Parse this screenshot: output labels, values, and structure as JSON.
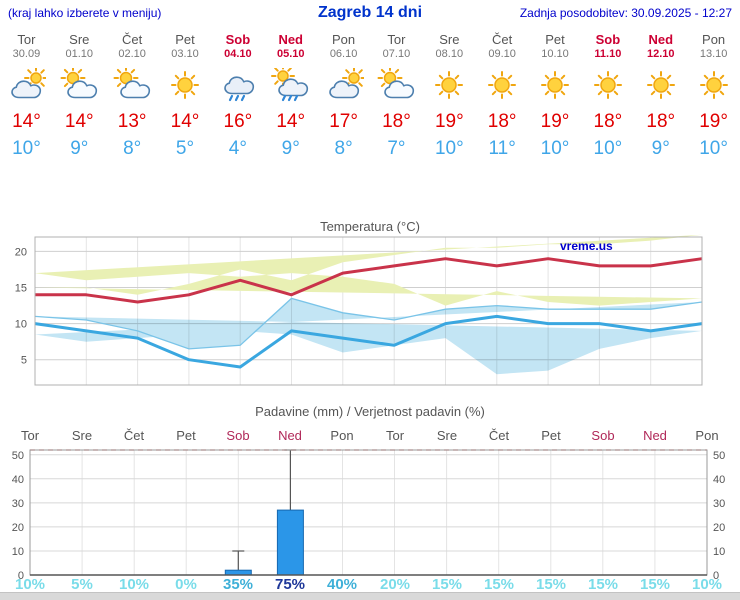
{
  "header": {
    "hint": "(kraj lahko izberete v meniju)",
    "title": "Zagreb 14 dni",
    "updated": "Zadnja posodobitev: 30.09.2025 - 12:27"
  },
  "days": [
    {
      "name": "Tor",
      "date": "30.09",
      "weekend": false,
      "icon": "cloudy",
      "tmax": "14°",
      "tmin": "10°"
    },
    {
      "name": "Sre",
      "date": "01.10",
      "weekend": false,
      "icon": "partly",
      "tmax": "14°",
      "tmin": "9°"
    },
    {
      "name": "Čet",
      "date": "02.10",
      "weekend": false,
      "icon": "partly",
      "tmax": "13°",
      "tmin": "8°"
    },
    {
      "name": "Pet",
      "date": "03.10",
      "weekend": false,
      "icon": "sun",
      "tmax": "14°",
      "tmin": "5°"
    },
    {
      "name": "Sob",
      "date": "04.10",
      "weekend": true,
      "icon": "rain",
      "tmax": "16°",
      "tmin": "4°"
    },
    {
      "name": "Ned",
      "date": "05.10",
      "weekend": true,
      "icon": "rainsun",
      "tmax": "14°",
      "tmin": "9°"
    },
    {
      "name": "Pon",
      "date": "06.10",
      "weekend": false,
      "icon": "cloudy",
      "tmax": "17°",
      "tmin": "8°"
    },
    {
      "name": "Tor",
      "date": "07.10",
      "weekend": false,
      "icon": "partly",
      "tmax": "18°",
      "tmin": "7°"
    },
    {
      "name": "Sre",
      "date": "08.10",
      "weekend": false,
      "icon": "sun",
      "tmax": "19°",
      "tmin": "10°"
    },
    {
      "name": "Čet",
      "date": "09.10",
      "weekend": false,
      "icon": "sun",
      "tmax": "18°",
      "tmin": "11°"
    },
    {
      "name": "Pet",
      "date": "10.10",
      "weekend": false,
      "icon": "sun",
      "tmax": "19°",
      "tmin": "10°"
    },
    {
      "name": "Sob",
      "date": "11.10",
      "weekend": true,
      "icon": "sun",
      "tmax": "18°",
      "tmin": "10°"
    },
    {
      "name": "Ned",
      "date": "12.10",
      "weekend": true,
      "icon": "sun",
      "tmax": "18°",
      "tmin": "9°"
    },
    {
      "name": "Pon",
      "date": "13.10",
      "weekend": false,
      "icon": "sun",
      "tmax": "19°",
      "tmin": "10°"
    }
  ],
  "chart_data": [
    {
      "type": "line",
      "title": "Temperatura (°C)",
      "watermark": "vreme.us",
      "watermark_color": "#0000cc",
      "categories": [
        "Tor",
        "Sre",
        "Čet",
        "Pet",
        "Sob",
        "Ned",
        "Pon",
        "Tor",
        "Sre",
        "Čet",
        "Pet",
        "Sob",
        "Ned",
        "Pon"
      ],
      "series": [
        {
          "name": "max temperatura",
          "color": "#c9334a",
          "values": [
            14,
            14,
            13,
            14,
            16,
            14,
            17,
            18,
            19,
            18,
            19,
            18,
            18,
            19
          ]
        },
        {
          "name": "min temperatura",
          "color": "#3aa7e0",
          "values": [
            10,
            9,
            8,
            5,
            4,
            9,
            8,
            7,
            10,
            11,
            10,
            10,
            9,
            10
          ]
        }
      ],
      "bands": [
        {
          "name": "max razpon",
          "color": "#e9f0b4",
          "upper": [
            15,
            15,
            14,
            15.5,
            17.5,
            16,
            18.5,
            19.5,
            20.5,
            20.5,
            21,
            21,
            21.5,
            22.3
          ],
          "lower": [
            13.5,
            13,
            12.5,
            13,
            14.5,
            12.5,
            15.5,
            16.5,
            17,
            16.5,
            17,
            16.5,
            16,
            17
          ]
        },
        {
          "name": "min razpon",
          "color": "#c3e5f4",
          "upper": [
            11,
            10.5,
            9,
            6.5,
            7,
            13.5,
            11.5,
            10.5,
            12,
            12.5,
            12,
            12,
            12,
            13
          ],
          "lower": [
            9,
            8,
            6.5,
            3.5,
            3,
            8,
            7,
            6,
            8.5,
            9,
            8.5,
            8,
            7.5,
            8.5
          ]
        }
      ],
      "ylim": [
        1.5,
        22
      ],
      "yticks": [
        5,
        10,
        15,
        20
      ],
      "grid": true,
      "legend": "none"
    },
    {
      "type": "bar",
      "title": "Padavine (mm) / Verjetnost padavin (%)",
      "categories": [
        "Tor",
        "Sre",
        "Čet",
        "Pet",
        "Sob",
        "Ned",
        "Pon",
        "Tor",
        "Sre",
        "Čet",
        "Pet",
        "Sob",
        "Ned",
        "Pon"
      ],
      "weekend_flags": [
        false,
        false,
        false,
        false,
        true,
        true,
        false,
        false,
        false,
        false,
        false,
        true,
        true,
        false
      ],
      "values_mm": [
        0,
        0,
        0,
        0,
        2,
        27,
        0,
        0,
        0,
        0,
        0,
        0,
        0,
        0
      ],
      "whisker_max_mm": [
        0,
        0,
        0,
        0,
        10,
        52,
        0,
        0,
        0,
        0,
        0,
        0,
        0,
        0
      ],
      "whisker_min_mm": [
        0,
        0,
        0,
        0,
        0,
        3,
        0,
        0,
        0,
        0,
        0,
        0,
        0,
        0
      ],
      "probabilities_pct": [
        10,
        5,
        10,
        0,
        35,
        75,
        40,
        20,
        15,
        15,
        15,
        15,
        15,
        10
      ],
      "prob_labels": [
        "10%",
        "5%",
        "10%",
        "0%",
        "35%",
        "75%",
        "40%",
        "20%",
        "15%",
        "15%",
        "15%",
        "15%",
        "15%",
        "10%"
      ],
      "bar_color": "#2b96e8",
      "bar_border_color": "#1668b0",
      "ylim": [
        0,
        52
      ],
      "yticks": [
        0,
        10,
        20,
        30,
        40,
        50
      ],
      "grid": true,
      "legend": "none"
    }
  ]
}
